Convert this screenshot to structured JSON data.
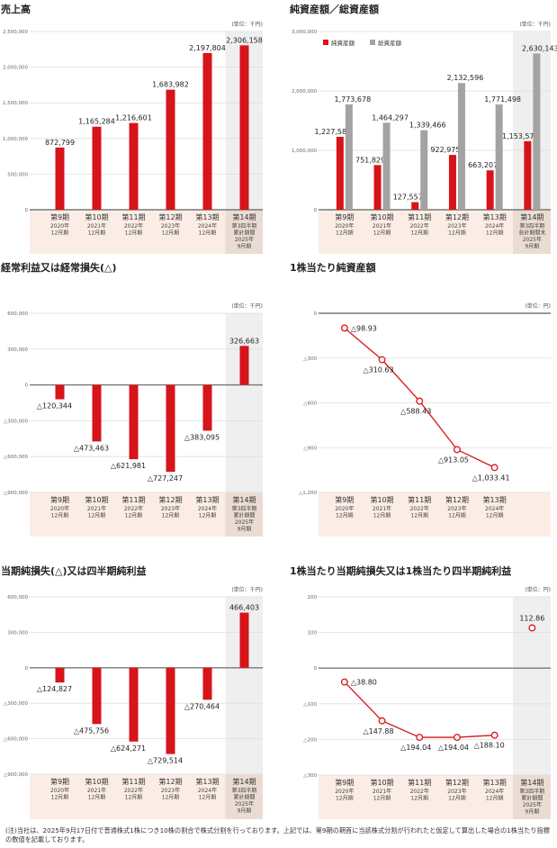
{
  "colors": {
    "red": "#d7141a",
    "gray": "#a3a3a3",
    "highlight": "#efefef",
    "cat_bg": "#fbede5",
    "cat_highlight": "#ebdcd3",
    "grid": "#dddddd",
    "axis": "#777777"
  },
  "categories": [
    {
      "period": "第9期",
      "year": "2020年",
      "month": "12月期"
    },
    {
      "period": "第10期",
      "year": "2021年",
      "month": "12月期"
    },
    {
      "period": "第11期",
      "year": "2022年",
      "month": "12月期"
    },
    {
      "period": "第12期",
      "year": "2023年",
      "month": "12月期"
    },
    {
      "period": "第13期",
      "year": "2024年",
      "month": "12月期"
    },
    {
      "period": "第14期",
      "sub1": "第3四半期",
      "sub2": "累計期間",
      "year": "2025年",
      "month": "9月期"
    }
  ],
  "categories_bs_last": {
    "period": "第14期",
    "sub1": "第3四半期",
    "sub2": "会計期間末",
    "year": "2025年",
    "month": "9月期"
  },
  "chart_data": [
    {
      "type": "bar",
      "title": "売上高",
      "unit": "(単位：千円)",
      "ylim": [
        0,
        2500000
      ],
      "yticks": [
        0,
        500000,
        1000000,
        1500000,
        2000000,
        2500000
      ],
      "ytick_labels": [
        "0",
        "500,000",
        "1,000,000",
        "1,500,000",
        "2,000,000",
        "2,500,000"
      ],
      "series": [
        {
          "name": "売上高",
          "values": [
            872799,
            1165284,
            1216601,
            1683982,
            2197804,
            2306158
          ],
          "labels": [
            "872,799",
            "1,165,284",
            "1,216,601",
            "1,683,982",
            "2,197,804",
            "2,306,158"
          ]
        }
      ]
    },
    {
      "type": "bar",
      "title": "純資産額／総資産額",
      "unit": "(単位：千円)",
      "ylim": [
        0,
        3000000
      ],
      "yticks": [
        0,
        1000000,
        2000000,
        3000000
      ],
      "ytick_labels": [
        "0",
        "1,000,000",
        "2,000,000",
        "3,000,000"
      ],
      "legend": "top-left",
      "series": [
        {
          "name": "純資産額",
          "values": [
            1227585,
            751829,
            127557,
            922975,
            663207,
            1153570
          ],
          "labels": [
            "1,227,585",
            "751,829",
            "127,557",
            "922,975",
            "663,207",
            "1,153,570"
          ]
        },
        {
          "name": "総資産額",
          "values": [
            1773678,
            1464297,
            1339466,
            2132596,
            1771498,
            2630143
          ],
          "labels": [
            "1,773,678",
            "1,464,297",
            "1,339,466",
            "2,132,596",
            "1,771,498",
            "2,630,143"
          ]
        }
      ]
    },
    {
      "type": "bar",
      "title": "経常利益又は経常損失(△)",
      "unit": "(単位：千円)",
      "ylim": [
        -900000,
        600000
      ],
      "yticks": [
        -900000,
        -600000,
        -300000,
        0,
        300000,
        600000
      ],
      "ytick_labels": [
        "△900,000",
        "△600,000",
        "△300,000",
        "0",
        "300,000",
        "600,000"
      ],
      "series": [
        {
          "name": "経常利益",
          "values": [
            -120344,
            -473463,
            -621981,
            -727247,
            -383095,
            326663
          ],
          "labels": [
            "△120,344",
            "△473,463",
            "△621,981",
            "△727,247",
            "△383,095",
            "326,663"
          ]
        }
      ]
    },
    {
      "type": "line",
      "title": "1株当たり純資産額",
      "unit": "(単位：円)",
      "ylim": [
        -1200,
        0
      ],
      "yticks": [
        -1200,
        -900,
        -600,
        -300,
        0
      ],
      "ytick_labels": [
        "△1,200",
        "△900",
        "△600",
        "△300",
        "0"
      ],
      "series": [
        {
          "name": "1株当たり純資産額",
          "values": [
            -98.93,
            -310.63,
            -588.43,
            -913.05,
            -1033.41
          ],
          "labels": [
            "△98.93",
            "△310.63",
            "△588.43",
            "△913.05",
            "△1,033.41"
          ]
        }
      ]
    },
    {
      "type": "bar",
      "title": "当期純損失(△)又は四半期純利益",
      "unit": "(単位：千円)",
      "ylim": [
        -900000,
        600000
      ],
      "yticks": [
        -900000,
        -600000,
        -300000,
        0,
        300000,
        600000
      ],
      "ytick_labels": [
        "△900,000",
        "△600,000",
        "△300,000",
        "0",
        "300,000",
        "600,000"
      ],
      "series": [
        {
          "name": "当期純損益",
          "values": [
            -124827,
            -475756,
            -624271,
            -729514,
            -270464,
            466403
          ],
          "labels": [
            "△124,827",
            "△475,756",
            "△624,271",
            "△729,514",
            "△270,464",
            "466,403"
          ]
        }
      ]
    },
    {
      "type": "line",
      "title": "1株当たり当期純損失又は1株当たり四半期純利益",
      "unit": "(単位：円)",
      "ylim": [
        -300,
        200
      ],
      "yticks": [
        -300,
        -200,
        -100,
        0,
        100,
        200
      ],
      "ytick_labels": [
        "△300",
        "△200",
        "△100",
        "0",
        "100",
        "200"
      ],
      "series": [
        {
          "name": "1株当たり当期純損益",
          "values": [
            -38.8,
            -147.88,
            -194.04,
            -194.04,
            -188.1,
            112.86
          ],
          "labels": [
            "△38.80",
            "△147.88",
            "△194.04",
            "△194.04",
            "△188.10",
            "112.86"
          ]
        }
      ]
    }
  ],
  "footnote": "(注)当社は、2025年9月17日付で普通株式1株につき10株の割合で株式分割を行っております。上記では、第9期の期首に当該株式分割が行われたと仮定して算出した場合の1株当たり指標の数値を記載しております。"
}
